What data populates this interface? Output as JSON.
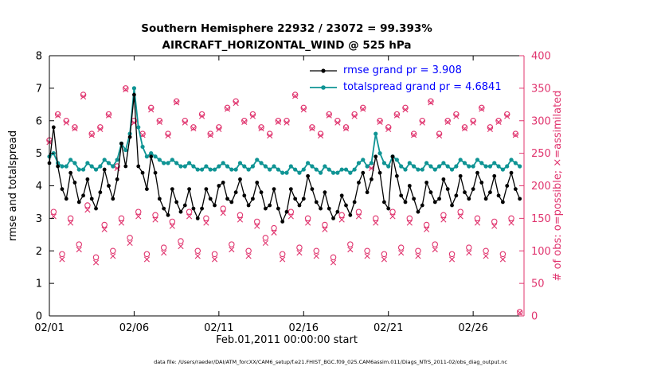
{
  "figure": {
    "title_line1": "Southern Hemisphere 22932 / 23072 = 99.393%",
    "title_line2": "AIRCRAFT_HORIZONTAL_WIND @ 525 hPa",
    "ylabel_left": "rmse and totalspread",
    "ylabel_right": "# of obs: o=possible; ×=assimilated",
    "xlabel": "Feb.01,2011 00:00:00 start",
    "caption": "data file: /Users/raeder/DAI/ATM_forcXX/CAM6_setup/f.e21.FHIST_BGC.f09_025.CAM6assim.011/Diags_NTrS_2011-02/obs_diag_output.nc",
    "legend": [
      {
        "label": "rmse grand pr = 3.908",
        "series": "rmse"
      },
      {
        "label": "totalspread grand pr = 4.6841",
        "series": "totalspread"
      }
    ]
  },
  "colors": {
    "rmse": "#000000",
    "totalspread": "#0f9494",
    "obs": "#e0346e",
    "legend_text": "#0000ff",
    "axis": "#000000"
  },
  "chart_data": {
    "type": "line",
    "title": "Southern Hemisphere 22932 / 23072 = 99.393% | AIRCRAFT_HORIZONTAL_WIND @ 525 hPa",
    "xlabel": "Feb.01,2011 00:00:00 start",
    "ylabel_left": "rmse and totalspread",
    "ylabel_right": "# of obs: o=possible; ×=assimilated",
    "x_start": 0,
    "x_step": 0.25,
    "x_range": [
      0,
      28
    ],
    "ylim_left": [
      0,
      8
    ],
    "ylim_right": [
      0,
      400
    ],
    "yticks_left": [
      0,
      1,
      2,
      3,
      4,
      5,
      6,
      7,
      8
    ],
    "yticks_right": [
      0,
      50,
      100,
      150,
      200,
      250,
      300,
      350,
      400
    ],
    "xticks": [
      {
        "v": 0,
        "label": "02/01"
      },
      {
        "v": 5,
        "label": "02/06"
      },
      {
        "v": 10,
        "label": "02/11"
      },
      {
        "v": 15,
        "label": "02/16"
      },
      {
        "v": 20,
        "label": "02/21"
      },
      {
        "v": 25,
        "label": "02/26"
      }
    ],
    "grid": false,
    "legend_position": "top-center-inside",
    "rmse": [
      4.7,
      5.8,
      4.6,
      3.9,
      3.6,
      4.4,
      4.1,
      3.5,
      3.7,
      4.2,
      3.6,
      3.3,
      3.8,
      4.5,
      4.0,
      3.6,
      4.2,
      5.3,
      4.6,
      5.5,
      6.8,
      4.6,
      4.4,
      3.9,
      4.9,
      4.4,
      3.6,
      3.3,
      3.1,
      3.9,
      3.5,
      3.2,
      3.4,
      3.9,
      3.3,
      3.0,
      3.3,
      3.9,
      3.6,
      3.4,
      4.0,
      4.1,
      3.6,
      3.5,
      3.8,
      4.2,
      3.7,
      3.4,
      3.6,
      4.1,
      3.8,
      3.3,
      3.4,
      3.9,
      3.3,
      2.9,
      3.2,
      3.9,
      3.6,
      3.4,
      3.6,
      4.3,
      3.9,
      3.5,
      3.3,
      3.8,
      3.3,
      3.0,
      3.2,
      3.7,
      3.4,
      3.1,
      3.5,
      4.1,
      4.4,
      3.8,
      4.2,
      4.9,
      4.4,
      3.5,
      3.3,
      4.9,
      4.3,
      3.7,
      3.5,
      4.0,
      3.6,
      3.2,
      3.4,
      4.1,
      3.8,
      3.5,
      3.6,
      4.2,
      3.9,
      3.4,
      3.7,
      4.3,
      3.8,
      3.6,
      3.9,
      4.4,
      4.1,
      3.6,
      3.8,
      4.3,
      3.7,
      3.5,
      4.0,
      4.4,
      3.9,
      3.6
    ],
    "totalspread": [
      4.9,
      5.0,
      4.7,
      4.6,
      4.6,
      4.8,
      4.7,
      4.5,
      4.5,
      4.7,
      4.6,
      4.5,
      4.6,
      4.8,
      4.7,
      4.6,
      4.8,
      5.3,
      5.1,
      5.6,
      7.0,
      5.8,
      5.2,
      4.9,
      5.0,
      4.9,
      4.8,
      4.7,
      4.7,
      4.8,
      4.7,
      4.6,
      4.6,
      4.7,
      4.6,
      4.5,
      4.5,
      4.6,
      4.5,
      4.5,
      4.6,
      4.7,
      4.6,
      4.5,
      4.5,
      4.7,
      4.6,
      4.5,
      4.6,
      4.8,
      4.7,
      4.6,
      4.5,
      4.6,
      4.5,
      4.4,
      4.4,
      4.6,
      4.5,
      4.4,
      4.5,
      4.7,
      4.6,
      4.5,
      4.4,
      4.6,
      4.5,
      4.4,
      4.4,
      4.5,
      4.5,
      4.4,
      4.5,
      4.7,
      4.8,
      4.6,
      4.7,
      5.6,
      5.0,
      4.7,
      4.6,
      4.9,
      4.8,
      4.6,
      4.5,
      4.7,
      4.6,
      4.5,
      4.5,
      4.7,
      4.6,
      4.5,
      4.6,
      4.7,
      4.6,
      4.5,
      4.6,
      4.8,
      4.7,
      4.6,
      4.6,
      4.8,
      4.7,
      4.6,
      4.6,
      4.7,
      4.6,
      4.5,
      4.6,
      4.8,
      4.7,
      4.6
    ],
    "obs_possible": [
      270,
      160,
      310,
      95,
      300,
      150,
      290,
      110,
      340,
      170,
      280,
      90,
      290,
      140,
      310,
      100,
      230,
      150,
      350,
      120,
      300,
      160,
      280,
      95,
      320,
      155,
      300,
      105,
      280,
      145,
      330,
      115,
      300,
      160,
      290,
      100,
      310,
      150,
      280,
      95,
      290,
      165,
      320,
      110,
      330,
      155,
      300,
      100,
      310,
      145,
      290,
      120,
      280,
      135,
      300,
      95,
      300,
      160,
      340,
      105,
      320,
      150,
      290,
      100,
      280,
      140,
      310,
      90,
      300,
      155,
      290,
      110,
      310,
      160,
      320,
      100,
      230,
      150,
      300,
      95,
      290,
      160,
      310,
      105,
      320,
      150,
      280,
      100,
      300,
      140,
      330,
      110,
      280,
      155,
      300,
      95,
      310,
      160,
      290,
      105,
      300,
      150,
      320,
      100,
      290,
      145,
      300,
      95,
      310,
      150,
      280,
      6
    ],
    "obs_assimilated": [
      267,
      153,
      308,
      87,
      297,
      143,
      288,
      102,
      337,
      163,
      278,
      82,
      287,
      133,
      308,
      92,
      227,
      143,
      348,
      112,
      297,
      153,
      278,
      87,
      317,
      148,
      298,
      97,
      277,
      138,
      328,
      107,
      297,
      153,
      288,
      92,
      307,
      143,
      278,
      87,
      287,
      158,
      318,
      102,
      327,
      148,
      298,
      92,
      307,
      138,
      288,
      112,
      277,
      128,
      298,
      87,
      297,
      153,
      338,
      97,
      317,
      143,
      288,
      92,
      277,
      133,
      308,
      82,
      297,
      148,
      288,
      102,
      307,
      153,
      318,
      92,
      227,
      143,
      298,
      87,
      287,
      153,
      308,
      97,
      317,
      143,
      278,
      92,
      297,
      133,
      328,
      102,
      277,
      148,
      298,
      87,
      307,
      153,
      288,
      97,
      297,
      143,
      318,
      92,
      287,
      138,
      298,
      87,
      307,
      143,
      278,
      5
    ],
    "legend_entries": [
      "rmse grand pr = 3.908",
      "totalspread grand pr = 4.6841"
    ]
  }
}
